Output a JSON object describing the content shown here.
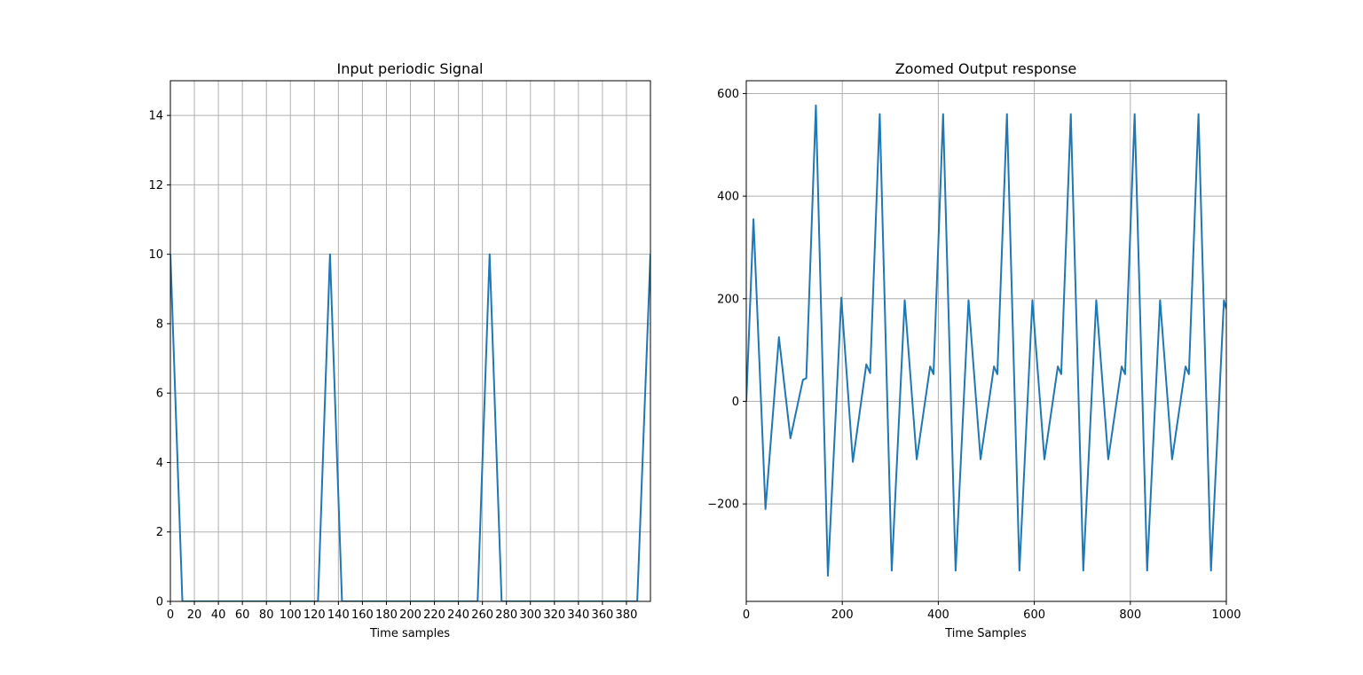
{
  "chart_data": [
    {
      "type": "line",
      "title": "Input periodic Signal",
      "xlabel": "Time samples",
      "ylabel": "",
      "xlim": [
        0,
        400
      ],
      "ylim": [
        0,
        15
      ],
      "xticks": [
        0,
        20,
        40,
        60,
        80,
        100,
        120,
        140,
        160,
        180,
        200,
        220,
        240,
        260,
        280,
        300,
        320,
        340,
        360,
        380
      ],
      "yticks": [
        0,
        2,
        4,
        6,
        8,
        10,
        12,
        14
      ],
      "grid": true,
      "line_color": "#1f77b4",
      "series": [
        {
          "x": [
            0,
            10,
            123,
            133,
            143,
            256,
            266,
            276,
            389,
            400
          ],
          "y": [
            10,
            0,
            0,
            10,
            0,
            0,
            10,
            0,
            0,
            10
          ]
        }
      ]
    },
    {
      "type": "line",
      "title": "Zoomed Output response",
      "xlabel": "Time Samples",
      "ylabel": "",
      "xlim": [
        0,
        1000
      ],
      "ylim": [
        -390,
        625
      ],
      "xticks": [
        0,
        200,
        400,
        600,
        800,
        1000
      ],
      "yticks": [
        -200,
        0,
        200,
        400,
        600
      ],
      "ytick_labels": [
        "−200",
        "0",
        "200",
        "400",
        "600"
      ],
      "grid": true,
      "line_color": "#1f77b4",
      "series": [
        {
          "x": [
            0,
            15,
            40,
            68,
            92,
            118,
            125,
            145,
            170,
            198,
            222,
            250,
            258,
            278,
            303,
            330,
            355,
            383,
            390,
            410,
            436,
            463,
            488,
            516,
            523,
            543,
            569,
            596,
            621,
            649,
            656,
            676,
            702,
            729,
            754,
            782,
            789,
            809,
            835,
            862,
            887,
            915,
            922,
            942,
            968,
            995,
            1000
          ],
          "y": [
            0,
            355,
            -210,
            125,
            -72,
            42,
            45,
            577,
            -340,
            202,
            -118,
            72,
            55,
            560,
            -330,
            197,
            -113,
            68,
            53,
            560,
            -330,
            197,
            -113,
            68,
            53,
            560,
            -330,
            197,
            -113,
            68,
            53,
            560,
            -330,
            197,
            -113,
            68,
            53,
            560,
            -330,
            197,
            -113,
            68,
            53,
            560,
            -330,
            197,
            180
          ]
        }
      ]
    }
  ]
}
